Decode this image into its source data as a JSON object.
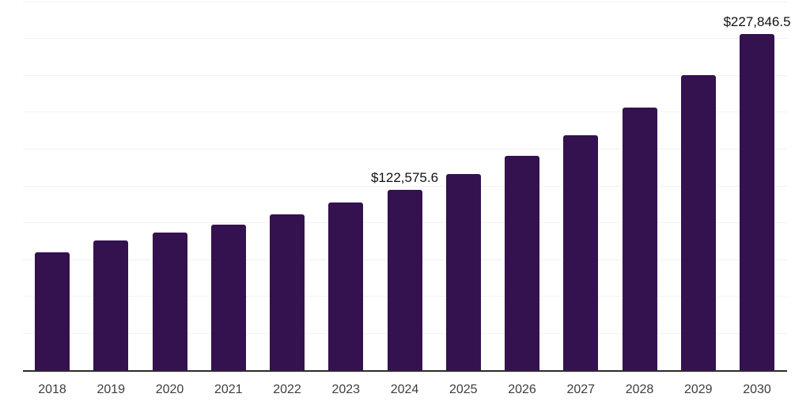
{
  "chart_data": {
    "type": "bar",
    "title": "",
    "xlabel": "",
    "ylabel": "",
    "categories": [
      "2018",
      "2019",
      "2020",
      "2021",
      "2022",
      "2023",
      "2024",
      "2025",
      "2026",
      "2027",
      "2028",
      "2029",
      "2030"
    ],
    "values": [
      79800,
      88000,
      93100,
      98900,
      105600,
      114000,
      122575.6,
      133000,
      145400,
      159400,
      177900,
      200000,
      227846.5
    ],
    "data_labels": {
      "2024": "$122,575.6",
      "2030": "$227,846.5"
    },
    "ylim": [
      0,
      250000
    ],
    "gridline_step": 25000,
    "grid": "horizontal",
    "y_axis_tick_labels_visible": false,
    "legend_position": "none",
    "colors": {
      "bar": "#34114f",
      "gridline": "#f3f2f4",
      "axis_line": "#2b2b2b",
      "value_label": "#111111",
      "tick_label": "#3d3d3d",
      "background": "#ffffff"
    }
  }
}
